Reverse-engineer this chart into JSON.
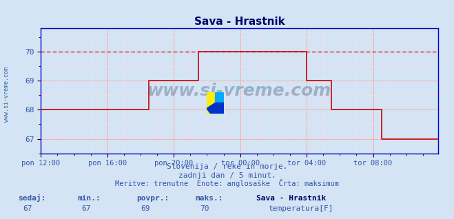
{
  "title": "Sava - Hrastnik",
  "bg_color": "#d4e4f4",
  "line_color": "#cc0000",
  "axis_color": "#0000cc",
  "grid_color_major": "#ffaaaa",
  "grid_color_minor": "#ffdddd",
  "text_color": "#3355aa",
  "title_color": "#000066",
  "watermark": "www.si-vreme.com",
  "ylabel_ticks": [
    67,
    68,
    69,
    70
  ],
  "ylim_low": 66.5,
  "ylim_high": 70.8,
  "xtick_labels": [
    "pon 12:00",
    "pon 16:00",
    "pon 20:00",
    "tor 00:00",
    "tor 04:00",
    "tor 08:00"
  ],
  "xtick_positions": [
    0,
    48,
    96,
    144,
    192,
    240
  ],
  "total_points": 288,
  "max_val": 70,
  "subtitle1": "Slovenija / reke in morje.",
  "subtitle2": "zadnji dan / 5 minut.",
  "subtitle3": "Meritve: trenutne  Enote: anglosaške  Črta: maksimum",
  "footer_labels": [
    "sedaj:",
    "min.:",
    "povpr.:",
    "maks.:"
  ],
  "footer_values": [
    "67",
    "67",
    "69",
    "70"
  ],
  "footer_station": "Sava - Hrastnik",
  "footer_legend": "temperatura[F]"
}
